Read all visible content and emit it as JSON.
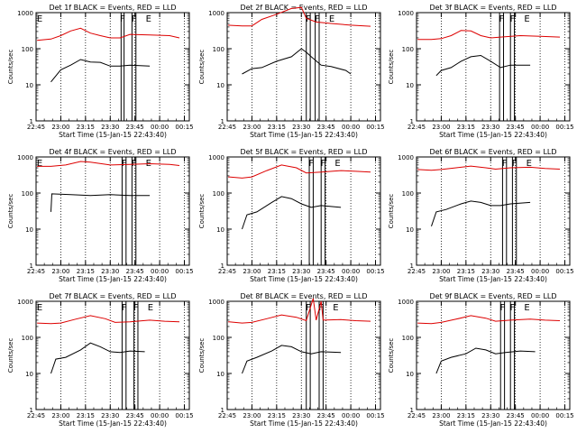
{
  "colors": {
    "events": "#000000",
    "lld": "#dd0000",
    "axes": "#000000"
  },
  "chart_data": [
    {
      "type": "line",
      "title": "Det 1f BLACK = Events, RED = LLD",
      "xlabel": "Start Time (15-Jan-15 22:43:40)",
      "ylabel": "Counts/sec",
      "x_ticks": [
        "22:45",
        "23:00",
        "23:15",
        "23:30",
        "23:45",
        "00:00",
        "00:15"
      ],
      "y_ticks": [
        "1",
        "10",
        "100",
        "1000"
      ],
      "ylim": [
        1,
        1000
      ],
      "y_scale": "log",
      "grid": "dotted verticals",
      "flags": [
        "E",
        "F",
        "F",
        "E"
      ],
      "series": [
        {
          "name": "Events",
          "values": [
            [
              22.9,
              12
            ],
            [
              23.0,
              26
            ],
            [
              23.1,
              35
            ],
            [
              23.2,
              50
            ],
            [
              23.3,
              43
            ],
            [
              23.4,
              42
            ],
            [
              23.5,
              33
            ],
            [
              23.6,
              33
            ],
            [
              23.7,
              35
            ],
            [
              23.9,
              33
            ]
          ]
        },
        {
          "name": "LLD",
          "values": [
            [
              22.76,
              170
            ],
            [
              22.9,
              185
            ],
            [
              23.0,
              230
            ],
            [
              23.1,
              310
            ],
            [
              23.2,
              370
            ],
            [
              23.3,
              270
            ],
            [
              23.4,
              230
            ],
            [
              23.5,
              200
            ],
            [
              23.6,
              200
            ],
            [
              23.7,
              250
            ],
            [
              23.9,
              240
            ],
            [
              24.1,
              230
            ],
            [
              24.2,
              200
            ]
          ]
        }
      ]
    },
    {
      "type": "line",
      "title": "Det 2f BLACK = Events, RED = LLD",
      "xlabel": "Start Time (15-Jan-15 22:43:40)",
      "ylabel": "Counts/sec",
      "x_ticks": [
        "22:45",
        "23:00",
        "23:15",
        "23:30",
        "23:45",
        "00:00",
        "00:15"
      ],
      "y_ticks": [
        "1",
        "10",
        "100",
        "1000"
      ],
      "ylim": [
        1,
        1000
      ],
      "y_scale": "log",
      "grid": "dotted verticals",
      "flags": [
        "F",
        "F",
        "E"
      ],
      "series": [
        {
          "name": "Events",
          "values": [
            [
              22.9,
              20
            ],
            [
              23.0,
              28
            ],
            [
              23.1,
              30
            ],
            [
              23.25,
              45
            ],
            [
              23.4,
              60
            ],
            [
              23.5,
              100
            ],
            [
              23.55,
              80
            ],
            [
              23.6,
              60
            ],
            [
              23.7,
              35
            ],
            [
              23.8,
              32
            ],
            [
              23.95,
              25
            ],
            [
              24.0,
              20
            ]
          ]
        },
        {
          "name": "LLD",
          "values": [
            [
              22.76,
              450
            ],
            [
              22.9,
              430
            ],
            [
              23.0,
              430
            ],
            [
              23.1,
              650
            ],
            [
              23.25,
              900
            ],
            [
              23.4,
              1300
            ],
            [
              23.5,
              1400
            ],
            [
              23.55,
              700
            ],
            [
              23.65,
              550
            ],
            [
              23.8,
              500
            ],
            [
              24.0,
              450
            ],
            [
              24.2,
              420
            ]
          ]
        }
      ]
    },
    {
      "type": "line",
      "title": "Det 3f BLACK = Events, RED = LLD",
      "xlabel": "Start Time (15-Jan-15 22:43:40)",
      "ylabel": "Counts/sec",
      "x_ticks": [
        "22:45",
        "23:00",
        "23:15",
        "23:30",
        "23:45",
        "00:00",
        "00:15"
      ],
      "y_ticks": [
        "1",
        "10",
        "100",
        "1000"
      ],
      "ylim": [
        1,
        1000
      ],
      "y_scale": "log",
      "grid": "dotted verticals",
      "flags": [
        "F",
        "F",
        "E"
      ],
      "series": [
        {
          "name": "Events",
          "values": [
            [
              22.95,
              18
            ],
            [
              23.0,
              25
            ],
            [
              23.1,
              30
            ],
            [
              23.2,
              45
            ],
            [
              23.3,
              60
            ],
            [
              23.4,
              65
            ],
            [
              23.5,
              45
            ],
            [
              23.6,
              30
            ],
            [
              23.7,
              35
            ],
            [
              23.9,
              35
            ]
          ]
        },
        {
          "name": "LLD",
          "values": [
            [
              22.76,
              180
            ],
            [
              22.9,
              180
            ],
            [
              23.0,
              190
            ],
            [
              23.1,
              230
            ],
            [
              23.2,
              320
            ],
            [
              23.3,
              310
            ],
            [
              23.4,
              230
            ],
            [
              23.5,
              200
            ],
            [
              23.6,
              210
            ],
            [
              23.8,
              230
            ],
            [
              24.0,
              220
            ],
            [
              24.2,
              210
            ]
          ]
        }
      ]
    },
    {
      "type": "line",
      "title": "Det 4f BLACK = Events, RED = LLD",
      "xlabel": "Start Time (15-Jan-15 22:43:40)",
      "ylabel": "Counts/sec",
      "x_ticks": [
        "22:45",
        "23:00",
        "23:15",
        "23:30",
        "23:45",
        "00:00",
        "00:15"
      ],
      "y_ticks": [
        "1",
        "10",
        "100",
        "1000"
      ],
      "ylim": [
        1,
        1000
      ],
      "y_scale": "log",
      "grid": "dotted verticals",
      "flags": [
        "E",
        "F",
        "F",
        "E"
      ],
      "series": [
        {
          "name": "Events",
          "values": [
            [
              22.9,
              30
            ],
            [
              22.91,
              95
            ],
            [
              23.1,
              90
            ],
            [
              23.3,
              85
            ],
            [
              23.5,
              90
            ],
            [
              23.7,
              85
            ],
            [
              23.9,
              85
            ]
          ]
        },
        {
          "name": "LLD",
          "values": [
            [
              22.76,
              550
            ],
            [
              22.9,
              550
            ],
            [
              23.05,
              600
            ],
            [
              23.2,
              750
            ],
            [
              23.3,
              720
            ],
            [
              23.5,
              600
            ],
            [
              23.7,
              620
            ],
            [
              23.9,
              650
            ],
            [
              24.1,
              620
            ],
            [
              24.2,
              580
            ]
          ]
        }
      ]
    },
    {
      "type": "line",
      "title": "Det 5f BLACK = Events, RED = LLD",
      "xlabel": "Start Time (15-Jan-15 22:43:40)",
      "ylabel": "Counts/sec",
      "x_ticks": [
        "22:45",
        "23:00",
        "23:15",
        "23:30",
        "23:45",
        "00:00",
        "00:15"
      ],
      "y_ticks": [
        "1",
        "10",
        "100",
        "1000"
      ],
      "ylim": [
        1,
        1000
      ],
      "y_scale": "log",
      "grid": "dotted verticals",
      "flags": [
        "F",
        "F",
        "E"
      ],
      "series": [
        {
          "name": "Events",
          "values": [
            [
              22.9,
              10
            ],
            [
              22.95,
              25
            ],
            [
              23.05,
              30
            ],
            [
              23.2,
              55
            ],
            [
              23.3,
              80
            ],
            [
              23.4,
              70
            ],
            [
              23.5,
              50
            ],
            [
              23.6,
              40
            ],
            [
              23.7,
              45
            ],
            [
              23.9,
              40
            ]
          ]
        },
        {
          "name": "LLD",
          "values": [
            [
              22.76,
              280
            ],
            [
              22.9,
              260
            ],
            [
              23.0,
              280
            ],
            [
              23.15,
              420
            ],
            [
              23.3,
              600
            ],
            [
              23.45,
              500
            ],
            [
              23.55,
              360
            ],
            [
              23.7,
              380
            ],
            [
              23.9,
              420
            ],
            [
              24.05,
              400
            ],
            [
              24.2,
              380
            ]
          ]
        }
      ]
    },
    {
      "type": "line",
      "title": "Det 6f BLACK = Events, RED = LLD",
      "xlabel": "Start Time (15-Jan-15 22:43:40)",
      "ylabel": "Counts/sec",
      "x_ticks": [
        "22:45",
        "23:00",
        "23:15",
        "23:30",
        "23:45",
        "00:00",
        "00:15"
      ],
      "y_ticks": [
        "1",
        "10",
        "100",
        "1000"
      ],
      "ylim": [
        1,
        1000
      ],
      "y_scale": "log",
      "grid": "dotted verticals",
      "flags": [
        "F",
        "F",
        "E"
      ],
      "series": [
        {
          "name": "Events",
          "values": [
            [
              22.9,
              12
            ],
            [
              22.95,
              30
            ],
            [
              23.05,
              35
            ],
            [
              23.2,
              50
            ],
            [
              23.3,
              60
            ],
            [
              23.4,
              55
            ],
            [
              23.5,
              45
            ],
            [
              23.6,
              45
            ],
            [
              23.7,
              50
            ],
            [
              23.9,
              55
            ]
          ]
        },
        {
          "name": "LLD",
          "values": [
            [
              22.76,
              450
            ],
            [
              22.9,
              430
            ],
            [
              23.0,
              450
            ],
            [
              23.15,
              500
            ],
            [
              23.3,
              560
            ],
            [
              23.45,
              500
            ],
            [
              23.55,
              460
            ],
            [
              23.7,
              500
            ],
            [
              23.9,
              520
            ],
            [
              24.05,
              480
            ],
            [
              24.2,
              460
            ]
          ]
        }
      ]
    },
    {
      "type": "line",
      "title": "Det 7f BLACK = Events, RED = LLD",
      "xlabel": "Start Time (15-Jan-15 22:43:40)",
      "ylabel": "Counts/sec",
      "x_ticks": [
        "22:45",
        "23:00",
        "23:15",
        "23:30",
        "23:45",
        "00:00",
        "00:15"
      ],
      "y_ticks": [
        "1",
        "10",
        "100",
        "1000"
      ],
      "ylim": [
        1,
        1000
      ],
      "y_scale": "log",
      "grid": "dotted verticals",
      "flags": [
        "E",
        "F",
        "F",
        "E"
      ],
      "series": [
        {
          "name": "Events",
          "values": [
            [
              22.9,
              10
            ],
            [
              22.95,
              25
            ],
            [
              23.05,
              28
            ],
            [
              23.2,
              45
            ],
            [
              23.3,
              70
            ],
            [
              23.4,
              55
            ],
            [
              23.5,
              40
            ],
            [
              23.6,
              38
            ],
            [
              23.7,
              42
            ],
            [
              23.85,
              40
            ]
          ]
        },
        {
          "name": "LLD",
          "values": [
            [
              22.76,
              250
            ],
            [
              22.9,
              240
            ],
            [
              23.0,
              250
            ],
            [
              23.15,
              320
            ],
            [
              23.3,
              400
            ],
            [
              23.45,
              330
            ],
            [
              23.55,
              260
            ],
            [
              23.7,
              270
            ],
            [
              23.9,
              300
            ],
            [
              24.05,
              280
            ],
            [
              24.2,
              270
            ]
          ]
        }
      ]
    },
    {
      "type": "line",
      "title": "Det 8f BLACK = Events, RED = LLD",
      "xlabel": "Start Time (15-Jan-15 22:43:40)",
      "ylabel": "Counts/sec",
      "x_ticks": [
        "22:45",
        "23:00",
        "23:15",
        "23:30",
        "23:45",
        "00:00",
        "00:15"
      ],
      "y_ticks": [
        "1",
        "10",
        "100",
        "1000"
      ],
      "ylim": [
        1,
        1000
      ],
      "y_scale": "log",
      "grid": "dotted verticals",
      "flags": [
        "F",
        "F",
        "E"
      ],
      "series": [
        {
          "name": "Events",
          "values": [
            [
              22.9,
              10
            ],
            [
              22.95,
              22
            ],
            [
              23.05,
              28
            ],
            [
              23.2,
              42
            ],
            [
              23.3,
              60
            ],
            [
              23.4,
              55
            ],
            [
              23.5,
              40
            ],
            [
              23.6,
              35
            ],
            [
              23.7,
              40
            ],
            [
              23.9,
              38
            ]
          ]
        },
        {
          "name": "LLD",
          "values": [
            [
              22.76,
              270
            ],
            [
              22.9,
              250
            ],
            [
              23.0,
              260
            ],
            [
              23.15,
              330
            ],
            [
              23.3,
              420
            ],
            [
              23.45,
              360
            ],
            [
              23.55,
              290
            ],
            [
              23.62,
              1200
            ],
            [
              23.65,
              300
            ],
            [
              23.7,
              1000
            ],
            [
              23.72,
              300
            ],
            [
              23.9,
              310
            ],
            [
              24.05,
              290
            ],
            [
              24.2,
              280
            ]
          ]
        }
      ]
    },
    {
      "type": "line",
      "title": "Det 9f BLACK = Events, RED = LLD",
      "xlabel": "Start Time (15-Jan-15 22:43:40)",
      "ylabel": "Counts/sec",
      "x_ticks": [
        "22:45",
        "23:00",
        "23:15",
        "23:30",
        "23:45",
        "00:00",
        "00:15"
      ],
      "y_ticks": [
        "1",
        "10",
        "100",
        "1000"
      ],
      "ylim": [
        1,
        1000
      ],
      "y_scale": "log",
      "grid": "dotted verticals",
      "flags": [
        "F",
        "F",
        "E"
      ],
      "series": [
        {
          "name": "Events",
          "values": [
            [
              22.95,
              10
            ],
            [
              23.0,
              22
            ],
            [
              23.1,
              28
            ],
            [
              23.25,
              35
            ],
            [
              23.35,
              50
            ],
            [
              23.45,
              45
            ],
            [
              23.55,
              35
            ],
            [
              23.65,
              38
            ],
            [
              23.8,
              42
            ],
            [
              23.95,
              40
            ]
          ]
        },
        {
          "name": "LLD",
          "values": [
            [
              22.76,
              250
            ],
            [
              22.9,
              240
            ],
            [
              23.0,
              260
            ],
            [
              23.15,
              320
            ],
            [
              23.3,
              400
            ],
            [
              23.45,
              340
            ],
            [
              23.55,
              280
            ],
            [
              23.7,
              300
            ],
            [
              23.9,
              320
            ],
            [
              24.05,
              300
            ],
            [
              24.2,
              290
            ]
          ]
        }
      ]
    }
  ]
}
